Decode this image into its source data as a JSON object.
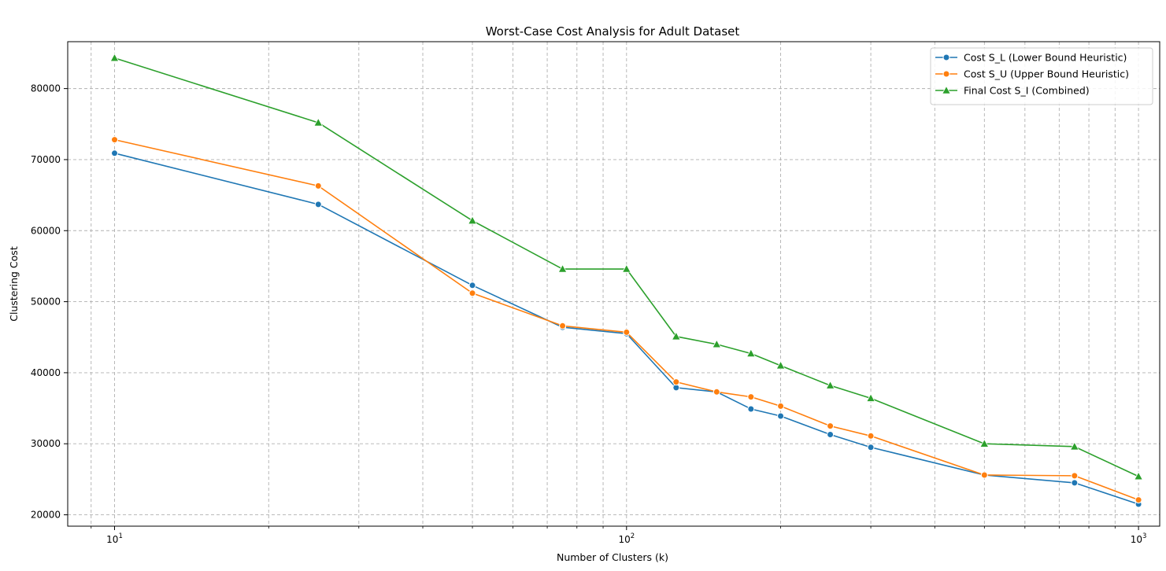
{
  "chart_data": {
    "type": "line",
    "title": "Worst-Case Cost Analysis for Adult Dataset",
    "xlabel": "Number of Clusters (k)",
    "ylabel": "Clustering Cost",
    "xscale": "log",
    "xlim": [
      8.1,
      1100
    ],
    "ylim": [
      18400,
      86600
    ],
    "x_ticks": [
      10,
      100,
      1000
    ],
    "x_tick_labels": [
      {
        "base": "10",
        "exp": "1"
      },
      {
        "base": "10",
        "exp": "2"
      },
      {
        "base": "10",
        "exp": "3"
      }
    ],
    "y_ticks": [
      20000,
      30000,
      40000,
      50000,
      60000,
      70000,
      80000
    ],
    "y_tick_labels": [
      "20000",
      "30000",
      "40000",
      "50000",
      "60000",
      "70000",
      "80000"
    ],
    "grid": true,
    "legend_position": "top-right",
    "x": [
      10,
      25,
      50,
      75,
      100,
      125,
      150,
      175,
      200,
      250,
      300,
      500,
      750,
      1000
    ],
    "series": [
      {
        "name": "Cost S_L (Lower Bound Heuristic)",
        "color": "#1f77b4",
        "marker": "circle",
        "values": [
          70900,
          63700,
          52300,
          46400,
          45500,
          37900,
          37300,
          34900,
          33900,
          31300,
          29500,
          25600,
          24500,
          21500
        ]
      },
      {
        "name": "Cost S_U (Upper Bound Heuristic)",
        "color": "#ff7f0e",
        "marker": "circle",
        "values": [
          72800,
          66300,
          51200,
          46600,
          45700,
          38700,
          37300,
          36600,
          35300,
          32500,
          31100,
          25600,
          25500,
          22100
        ]
      },
      {
        "name": "Final Cost S_I (Combined)",
        "color": "#2ca02c",
        "marker": "triangle",
        "values": [
          84300,
          75200,
          61400,
          54600,
          54600,
          45100,
          44000,
          42700,
          41000,
          38200,
          36400,
          30000,
          29600,
          25400
        ]
      }
    ]
  }
}
